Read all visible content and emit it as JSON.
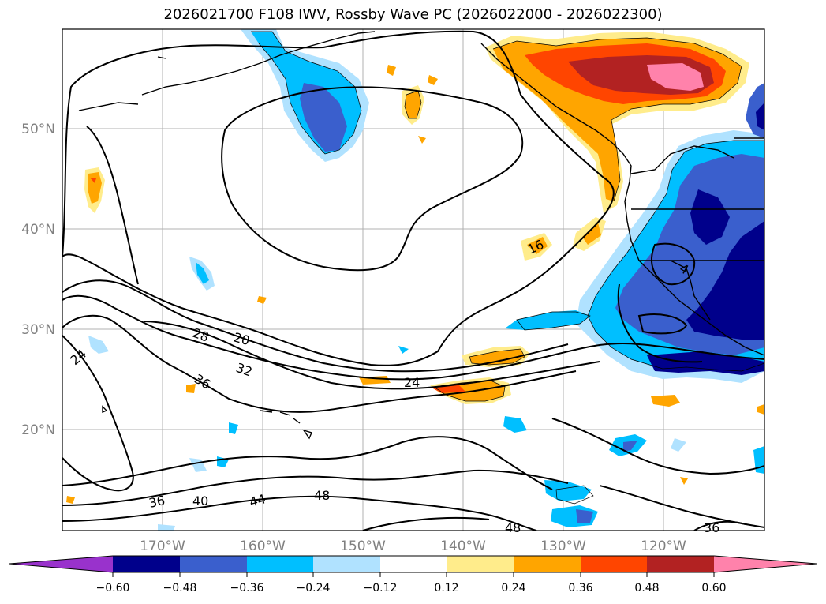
{
  "title": "2026021700 F108 IWV, Rossby Wave PC (2026022000 - 2026022300)",
  "lat_labels": [
    "50°N",
    "40°N",
    "30°N",
    "20°N"
  ],
  "lon_labels": [
    "170°W",
    "160°W",
    "150°W",
    "140°W",
    "130°W",
    "120°W"
  ],
  "contour_labels": [
    "16",
    "20",
    "24",
    "24",
    "28",
    "32",
    "36",
    "36",
    "40",
    "44",
    "48",
    "48",
    "36",
    "4"
  ],
  "colorbar": {
    "ticks": [
      "−0.60",
      "−0.48",
      "−0.36",
      "−0.24",
      "−0.12",
      "0.12",
      "0.24",
      "0.36",
      "0.48",
      "0.60"
    ],
    "colors": [
      "#9932cc",
      "#00008b",
      "#3a5fcd",
      "#00bfff",
      "#b0e2ff",
      "#ffffff",
      "#ffec8b",
      "#ffa500",
      "#ff4500",
      "#b22222",
      "#ff82ab"
    ]
  },
  "colors": {
    "neg_strong": "#00008b",
    "neg_mid": "#3a5fcd",
    "neg_light": "#00bfff",
    "neg_pale": "#b0e2ff",
    "pos_pale": "#ffec8b",
    "pos_mid": "#ffa500",
    "pos_strong": "#ff4500",
    "pos_dark": "#b22222",
    "pos_max": "#ff82ab"
  }
}
